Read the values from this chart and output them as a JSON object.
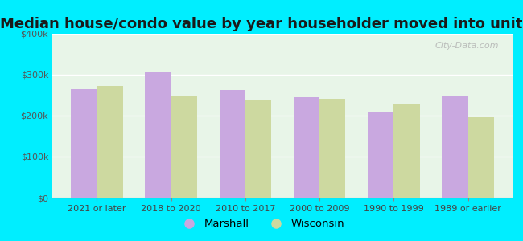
{
  "title": "Median house/condo value by year householder moved into unit",
  "categories": [
    "2021 or later",
    "2018 to 2020",
    "2010 to 2017",
    "2000 to 2009",
    "1990 to 1999",
    "1989 or earlier"
  ],
  "marshall_values": [
    265000,
    305000,
    262000,
    245000,
    210000,
    248000
  ],
  "wisconsin_values": [
    272000,
    248000,
    238000,
    242000,
    228000,
    197000
  ],
  "marshall_color": "#c9a8e0",
  "wisconsin_color": "#cdd9a0",
  "background_color": "#00eeff",
  "plot_bg_color": "#e8f5e8",
  "ylim": [
    0,
    400000
  ],
  "yticks": [
    0,
    100000,
    200000,
    300000,
    400000
  ],
  "ytick_labels": [
    "$0",
    "$100k",
    "$200k",
    "$300k",
    "$400k"
  ],
  "legend_labels": [
    "Marshall",
    "Wisconsin"
  ],
  "title_fontsize": 13,
  "tick_fontsize": 8,
  "legend_fontsize": 9.5,
  "bar_width": 0.35,
  "watermark": "City-Data.com"
}
